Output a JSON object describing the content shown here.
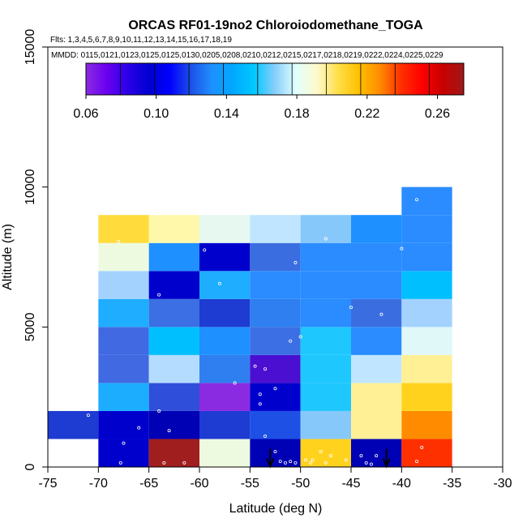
{
  "chart_data": {
    "type": "heatmap",
    "title": "ORCAS RF01-19no2 Chloroiodomethane_TOGA",
    "flights_label": "Flts: 1,3,4,5,6,7,8,9,10,11,12,13,14,15,16,17,18,19",
    "mmdd_label": "MMDD: 0115,0121,0123,0125,0125,0130,0205,0208,0210,0212,0215,0217,0218,0219,0222,0224,0225,0229",
    "xlabel": "Latitude (deg N)",
    "ylabel": "Altitude (m)",
    "xlim": [
      -75,
      -30
    ],
    "ylim": [
      0,
      15000
    ],
    "xticks": [
      -75,
      -70,
      -65,
      -60,
      -55,
      -50,
      -45,
      -40,
      -35,
      -30
    ],
    "xtick_labels": [
      "-75",
      "-70",
      "-65",
      "-60",
      "-55",
      "-50",
      "-45",
      "-40",
      "-35",
      "-30"
    ],
    "yticks": [
      0,
      5000,
      10000,
      15000
    ],
    "ytick_labels": [
      "0",
      "5000",
      "10000",
      "15000"
    ],
    "colorbar": {
      "range": [
        0.06,
        0.275
      ],
      "tick_values": [
        0.06,
        0.1,
        0.14,
        0.18,
        0.22,
        0.26
      ],
      "tick_labels": [
        "0.06",
        "0.10",
        "0.14",
        "0.18",
        "0.22",
        "0.26"
      ],
      "colors": [
        "#8a2be2",
        "#6a00f0",
        "#2a00e8",
        "#0000d0",
        "#0000ff",
        "#1e50e6",
        "#1e90ff",
        "#00a8ff",
        "#00c8ff",
        "#87cefa",
        "#e0ffff",
        "#fffacd",
        "#ffe04a",
        "#ffc000",
        "#ff8c00",
        "#ff3000",
        "#ff0000",
        "#c80000",
        "#a01818"
      ]
    },
    "cells": [
      {
        "lat": -75,
        "alt": 1000,
        "color": "#1e3bd2"
      },
      {
        "lat": -70,
        "alt": 1000,
        "color": "#0000cd"
      },
      {
        "lat": -70,
        "alt": 2000,
        "color": "#1cadff"
      },
      {
        "lat": -70,
        "alt": 3000,
        "color": "#4169e1"
      },
      {
        "lat": -70,
        "alt": 4000,
        "color": "#4169e1"
      },
      {
        "lat": -70,
        "alt": 5000,
        "color": "#1eadff"
      },
      {
        "lat": -70,
        "alt": 6000,
        "color": "#a3d2ff"
      },
      {
        "lat": -70,
        "alt": 7000,
        "color": "#eefae0"
      },
      {
        "lat": -70,
        "alt": 8000,
        "color": "#ffdc3c"
      },
      {
        "lat": -70,
        "alt": 0,
        "color": "#0000cd"
      },
      {
        "lat": -65,
        "alt": 0,
        "color": "#a01e1e"
      },
      {
        "lat": -65,
        "alt": 1000,
        "color": "#0000b4"
      },
      {
        "lat": -65,
        "alt": 2000,
        "color": "#2f4fdb"
      },
      {
        "lat": -65,
        "alt": 3000,
        "color": "#b4dcff"
      },
      {
        "lat": -65,
        "alt": 4000,
        "color": "#00bfff"
      },
      {
        "lat": -65,
        "alt": 5000,
        "color": "#3b6fe3"
      },
      {
        "lat": -65,
        "alt": 6000,
        "color": "#0000cd"
      },
      {
        "lat": -65,
        "alt": 7000,
        "color": "#1e90ff"
      },
      {
        "lat": -65,
        "alt": 8000,
        "color": "#fff8aa"
      },
      {
        "lat": -60,
        "alt": 0,
        "color": "#eefae0"
      },
      {
        "lat": -60,
        "alt": 1000,
        "color": "#1e3bd2"
      },
      {
        "lat": -60,
        "alt": 2000,
        "color": "#8a2be2"
      },
      {
        "lat": -60,
        "alt": 3000,
        "color": "#2f7ff0"
      },
      {
        "lat": -60,
        "alt": 4000,
        "color": "#1e90ff"
      },
      {
        "lat": -60,
        "alt": 5000,
        "color": "#1e3bd2"
      },
      {
        "lat": -60,
        "alt": 6000,
        "color": "#1eadff"
      },
      {
        "lat": -60,
        "alt": 7000,
        "color": "#0000cd"
      },
      {
        "lat": -60,
        "alt": 8000,
        "color": "#e6f8f0"
      },
      {
        "lat": -55,
        "alt": 0,
        "color": "#0000b4"
      },
      {
        "lat": -55,
        "alt": 1000,
        "color": "#1e50e6"
      },
      {
        "lat": -55,
        "alt": 2000,
        "color": "#0000cd"
      },
      {
        "lat": -55,
        "alt": 3000,
        "color": "#4b0fd2"
      },
      {
        "lat": -55,
        "alt": 4000,
        "color": "#3b6fe3"
      },
      {
        "lat": -55,
        "alt": 5000,
        "color": "#2f7ff0"
      },
      {
        "lat": -55,
        "alt": 6000,
        "color": "#2a8cff"
      },
      {
        "lat": -55,
        "alt": 7000,
        "color": "#3a6ee0"
      },
      {
        "lat": -55,
        "alt": 8000,
        "color": "#c0e6ff"
      },
      {
        "lat": -50,
        "alt": 0,
        "color": "#ffd21e"
      },
      {
        "lat": -50,
        "alt": 1000,
        "color": "#87c8fa"
      },
      {
        "lat": -50,
        "alt": 2000,
        "color": "#1ec8ff"
      },
      {
        "lat": -50,
        "alt": 3000,
        "color": "#1ec8ff"
      },
      {
        "lat": -50,
        "alt": 4000,
        "color": "#1ec8ff"
      },
      {
        "lat": -50,
        "alt": 5000,
        "color": "#2a8cff"
      },
      {
        "lat": -50,
        "alt": 6000,
        "color": "#2a8cff"
      },
      {
        "lat": -50,
        "alt": 7000,
        "color": "#2a8cff"
      },
      {
        "lat": -50,
        "alt": 8000,
        "color": "#87c8fa"
      },
      {
        "lat": -45,
        "alt": 0,
        "color": "#0000b4"
      },
      {
        "lat": -45,
        "alt": 1000,
        "color": "#fff096"
      },
      {
        "lat": -45,
        "alt": 2000,
        "color": "#fff096"
      },
      {
        "lat": -45,
        "alt": 3000,
        "color": "#c0e6ff"
      },
      {
        "lat": -45,
        "alt": 4000,
        "color": "#2a8cff"
      },
      {
        "lat": -45,
        "alt": 5000,
        "color": "#3a6ee0"
      },
      {
        "lat": -45,
        "alt": 6000,
        "color": "#2a8cff"
      },
      {
        "lat": -45,
        "alt": 7000,
        "color": "#2a8cff"
      },
      {
        "lat": -45,
        "alt": 8000,
        "color": "#1e90ff"
      },
      {
        "lat": -40,
        "alt": 0,
        "color": "#ff3000"
      },
      {
        "lat": -40,
        "alt": 1000,
        "color": "#ff8c00"
      },
      {
        "lat": -40,
        "alt": 2000,
        "color": "#ffd21e"
      },
      {
        "lat": -40,
        "alt": 3000,
        "color": "#fff096"
      },
      {
        "lat": -40,
        "alt": 4000,
        "color": "#e0f8f8"
      },
      {
        "lat": -40,
        "alt": 5000,
        "color": "#a3d2ff"
      },
      {
        "lat": -40,
        "alt": 6000,
        "color": "#00bfff"
      },
      {
        "lat": -40,
        "alt": 7000,
        "color": "#2a8cff"
      },
      {
        "lat": -40,
        "alt": 8000,
        "color": "#2a8cff"
      },
      {
        "lat": -40,
        "alt": 9000,
        "color": "#2a8cff"
      }
    ],
    "cell_width_deg": 5,
    "cell_height_m": 1000,
    "samples": [
      [
        -71,
        1850
      ],
      [
        -66,
        1400
      ],
      [
        -64,
        2000
      ],
      [
        -63,
        1300
      ],
      [
        -67.5,
        850
      ],
      [
        -67.8,
        150
      ],
      [
        -63.5,
        150
      ],
      [
        -61.5,
        150
      ],
      [
        -68,
        8050
      ],
      [
        -64,
        6150
      ],
      [
        -58,
        6550
      ],
      [
        -59.5,
        7750
      ],
      [
        -56.5,
        3000
      ],
      [
        -54.5,
        3600
      ],
      [
        -53.5,
        3500
      ],
      [
        -54,
        2600
      ],
      [
        -54,
        2250
      ],
      [
        -52.5,
        2800
      ],
      [
        -53.5,
        1100
      ],
      [
        -52.5,
        550
      ],
      [
        -52,
        200
      ],
      [
        -51.5,
        150
      ],
      [
        -51,
        200
      ],
      [
        -50.5,
        150
      ],
      [
        -49,
        150
      ],
      [
        -48.8,
        250
      ],
      [
        -49.5,
        250
      ],
      [
        -47.5,
        150
      ],
      [
        -48,
        550
      ],
      [
        -47,
        400
      ],
      [
        -45.5,
        250
      ],
      [
        -44,
        400
      ],
      [
        -42.5,
        400
      ],
      [
        -43.5,
        150
      ],
      [
        -43,
        100
      ],
      [
        -38,
        700
      ],
      [
        -38.5,
        200
      ],
      [
        -51,
        4500
      ],
      [
        -50,
        4650
      ],
      [
        -47.5,
        8150
      ],
      [
        -50.5,
        7300
      ],
      [
        -45,
        5700
      ],
      [
        -42,
        5450
      ],
      [
        -40,
        7800
      ],
      [
        -38.5,
        9550
      ]
    ],
    "arrows": [
      {
        "lat": -53,
        "label": "down"
      },
      {
        "lat": -41.5,
        "label": "down"
      }
    ]
  }
}
